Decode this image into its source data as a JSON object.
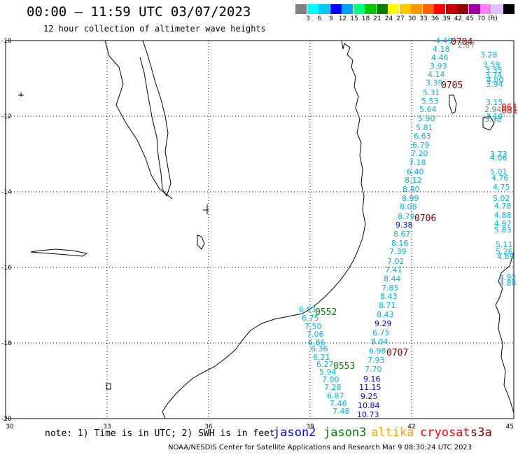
{
  "title": "00:00 – 11:59 UTC 03/07/2023",
  "subtitle": "12 hour collection of altimeter wave heights",
  "scale": {
    "colors": [
      "#808080",
      "#00ffff",
      "#00c8ff",
      "#0000ff",
      "#00a0ff",
      "#00ff80",
      "#00c800",
      "#008000",
      "#ffff00",
      "#ffc800",
      "#ff9600",
      "#ff6400",
      "#ff0000",
      "#c80000",
      "#960000",
      "#a000a0",
      "#ff80ff",
      "#e0c0ff",
      "#000000"
    ],
    "ticks": [
      "3",
      "6",
      "9",
      "12",
      "15",
      "18",
      "21",
      "24",
      "27",
      "30",
      "33",
      "36",
      "39",
      "42",
      "45",
      "70",
      "(ft)"
    ]
  },
  "axes": {
    "lon_labels": [
      "30",
      "33",
      "36",
      "39",
      "42",
      "45"
    ],
    "lat_labels": [
      "-10",
      "-12",
      "-14",
      "-16",
      "-18",
      "-20"
    ]
  },
  "track_times": [
    {
      "text": "0704",
      "color": "#800000"
    },
    {
      "text": "0705",
      "color": "#800000"
    },
    {
      "text": "0706",
      "color": "#800000"
    },
    {
      "text": "0707",
      "color": "#800000"
    },
    {
      "text": "0552",
      "color": "#008000"
    },
    {
      "text": "0553",
      "color": "#008000"
    },
    {
      "text": "061",
      "color": "#ff0000"
    },
    {
      "text": "081",
      "color": "#ff0000"
    }
  ],
  "readings": [
    {
      "v": "4.49",
      "c": "#00b4e6"
    },
    {
      "v": "4.18",
      "c": "#00b4e6"
    },
    {
      "v": "4.46",
      "c": "#00b4e6"
    },
    {
      "v": "3.93",
      "c": "#00b4e6"
    },
    {
      "v": "4.14",
      "c": "#00b4e6"
    },
    {
      "v": "3.39",
      "c": "#00b4e6"
    },
    {
      "v": "5.31",
      "c": "#00b4e6"
    },
    {
      "v": "5.53",
      "c": "#00b4e6"
    },
    {
      "v": "5.64",
      "c": "#00b4e6"
    },
    {
      "v": "5.90",
      "c": "#00b4e6"
    },
    {
      "v": "5.81",
      "c": "#00b4e6"
    },
    {
      "v": "6.63",
      "c": "#00b4e6"
    },
    {
      "v": "6.79",
      "c": "#00b4e6"
    },
    {
      "v": "7.20",
      "c": "#00b4e6"
    },
    {
      "v": "7.18",
      "c": "#00b4e6"
    },
    {
      "v": "6.40",
      "c": "#00b4e6"
    },
    {
      "v": "8.12",
      "c": "#00b4e6"
    },
    {
      "v": "8.40",
      "c": "#00b4e6"
    },
    {
      "v": "8.99",
      "c": "#00b4e6"
    },
    {
      "v": "8.08",
      "c": "#00b4e6"
    },
    {
      "v": "8.79",
      "c": "#00b4e6"
    },
    {
      "v": "9.38",
      "c": "#0000c8"
    },
    {
      "v": "8.67",
      "c": "#00b4e6"
    },
    {
      "v": "8.16",
      "c": "#00b4e6"
    },
    {
      "v": "7.39",
      "c": "#00b4e6"
    },
    {
      "v": "7.02",
      "c": "#00b4e6"
    },
    {
      "v": "7.41",
      "c": "#00b4e6"
    },
    {
      "v": "8.44",
      "c": "#00b4e6"
    },
    {
      "v": "7.85",
      "c": "#00b4e6"
    },
    {
      "v": "8.43",
      "c": "#00b4e6"
    },
    {
      "v": "8.71",
      "c": "#00b4e6"
    },
    {
      "v": "8.43",
      "c": "#00b4e6"
    },
    {
      "v": "9.29",
      "c": "#0000c8"
    },
    {
      "v": "6.75",
      "c": "#00b4e6"
    },
    {
      "v": "8.04",
      "c": "#00b4e6"
    },
    {
      "v": "6.98",
      "c": "#00b4e6"
    },
    {
      "v": "7.93",
      "c": "#00b4e6"
    },
    {
      "v": "7.70",
      "c": "#00b4e6"
    },
    {
      "v": "9.16",
      "c": "#0000c8"
    },
    {
      "v": "11.15",
      "c": "#0000c8"
    },
    {
      "v": "9.25",
      "c": "#0000c8"
    },
    {
      "v": "10.84",
      "c": "#0000c8"
    },
    {
      "v": "10.73",
      "c": "#0000c8"
    },
    {
      "v": "6.53",
      "c": "#00b4e6"
    },
    {
      "v": "6.75",
      "c": "#00b4e6"
    },
    {
      "v": "7.50",
      "c": "#00b4e6"
    },
    {
      "v": "7.06",
      "c": "#00b4e6"
    },
    {
      "v": "6.86",
      "c": "#00b4e6"
    },
    {
      "v": "6.36",
      "c": "#00b4e6"
    },
    {
      "v": "6.21",
      "c": "#00b4e6"
    },
    {
      "v": "6.27",
      "c": "#00b4e6"
    },
    {
      "v": "5.94",
      "c": "#00b4e6"
    },
    {
      "v": "7.00",
      "c": "#00b4e6"
    },
    {
      "v": "7.28",
      "c": "#00b4e6"
    },
    {
      "v": "6.87",
      "c": "#00b4e6"
    },
    {
      "v": "7.46",
      "c": "#00b4e6"
    },
    {
      "v": "7.48",
      "c": "#00b4e6"
    },
    {
      "v": "2.87",
      "c": "#808080"
    },
    {
      "v": "3.28",
      "c": "#00b4e6"
    },
    {
      "v": "3.59",
      "c": "#00b4e6"
    },
    {
      "v": "3.35",
      "c": "#00b4e6"
    },
    {
      "v": "3.74",
      "c": "#00b4e6"
    },
    {
      "v": "4.00",
      "c": "#00b4e6"
    },
    {
      "v": "3.94",
      "c": "#00b4e6"
    },
    {
      "v": "3.15",
      "c": "#00b4e6"
    },
    {
      "v": "2.94",
      "c": "#808080"
    },
    {
      "v": "3.19",
      "c": "#00b4e6"
    },
    {
      "v": "3.38",
      "c": "#00b4e6"
    },
    {
      "v": "3.73",
      "c": "#00b4e6"
    },
    {
      "v": "4.06",
      "c": "#00b4e6"
    },
    {
      "v": "5.01",
      "c": "#00b4e6"
    },
    {
      "v": "4.76",
      "c": "#00b4e6"
    },
    {
      "v": "4.75",
      "c": "#00b4e6"
    },
    {
      "v": "5.02",
      "c": "#00b4e6"
    },
    {
      "v": "4.78",
      "c": "#00b4e6"
    },
    {
      "v": "4.88",
      "c": "#00b4e6"
    },
    {
      "v": "4.97",
      "c": "#00b4e6"
    },
    {
      "v": "5.83",
      "c": "#00b4e6"
    },
    {
      "v": "5.11",
      "c": "#00b4e6"
    },
    {
      "v": "5.26",
      "c": "#00b4e6"
    },
    {
      "v": "4.89",
      "c": "#00b4e6"
    },
    {
      "v": "4.92",
      "c": "#00b4e6"
    },
    {
      "v": "4.88",
      "c": "#00b4e6"
    }
  ],
  "note": "note: 1) Time is in UTC; 2) SWH is in feet",
  "satellites": [
    {
      "name": "jason2",
      "color": "#0000ff"
    },
    {
      "name": "jason3",
      "color": "#008000"
    },
    {
      "name": "altika",
      "color": "#ffa500"
    },
    {
      "name": "cryosat",
      "color": "#ff0000"
    },
    {
      "name": "s3a",
      "color": "#800000"
    }
  ],
  "credit": "NOAA/NESDIS Center for Satellite Applications and Research   Mar  9 08:30:24 UTC 2023"
}
